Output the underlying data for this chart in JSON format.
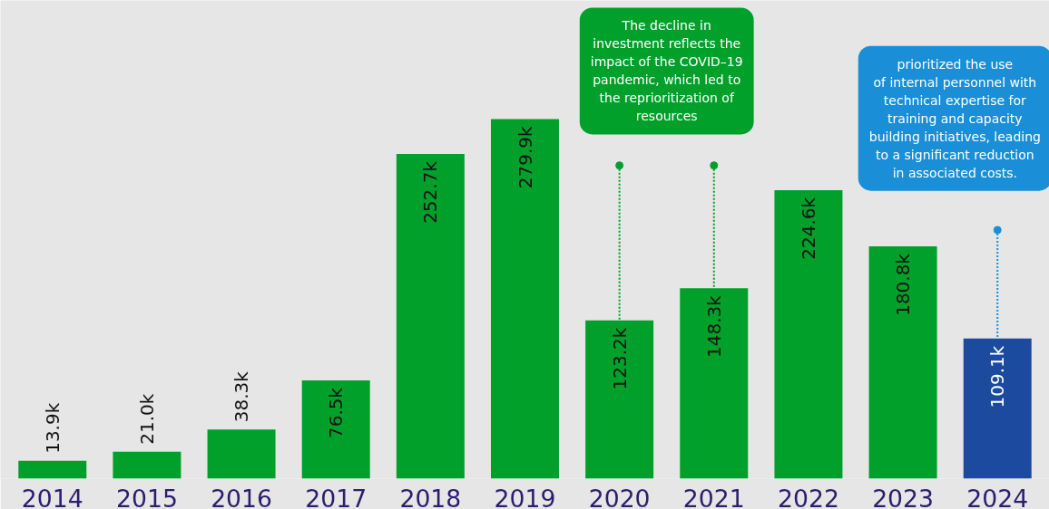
{
  "chart_data": {
    "type": "bar",
    "categories": [
      "2014",
      "2015",
      "2016",
      "2017",
      "2018",
      "2019",
      "2020",
      "2021",
      "2022",
      "2023",
      "2024"
    ],
    "values": [
      13.9,
      21.0,
      38.3,
      76.5,
      252.7,
      279.9,
      123.2,
      148.3,
      224.6,
      180.8,
      109.1
    ],
    "value_labels": [
      "13.9k",
      "21.0k",
      "38.3k",
      "76.5k",
      "252.7k",
      "279.9k",
      "123.2k",
      "148.3k",
      "224.6k",
      "180.8k",
      "109.1k"
    ],
    "colors": [
      "#00a02a",
      "#00a02a",
      "#00a02a",
      "#00a02a",
      "#00a02a",
      "#00a02a",
      "#00a02a",
      "#00a02a",
      "#00a02a",
      "#00a02a",
      "#1b4a9e"
    ],
    "annotations": [
      "The decline in\ninvestment reflects the\nimpact of the COVID–19\npandemic, which led to\nthe reprioritization of\nresources",
      "prioritized the use\nof internal personnel with\ntechnical expertise for\ntraining and capacity\nbuilding initiatives, leading\nto a significant reduction\nin associated costs."
    ]
  }
}
